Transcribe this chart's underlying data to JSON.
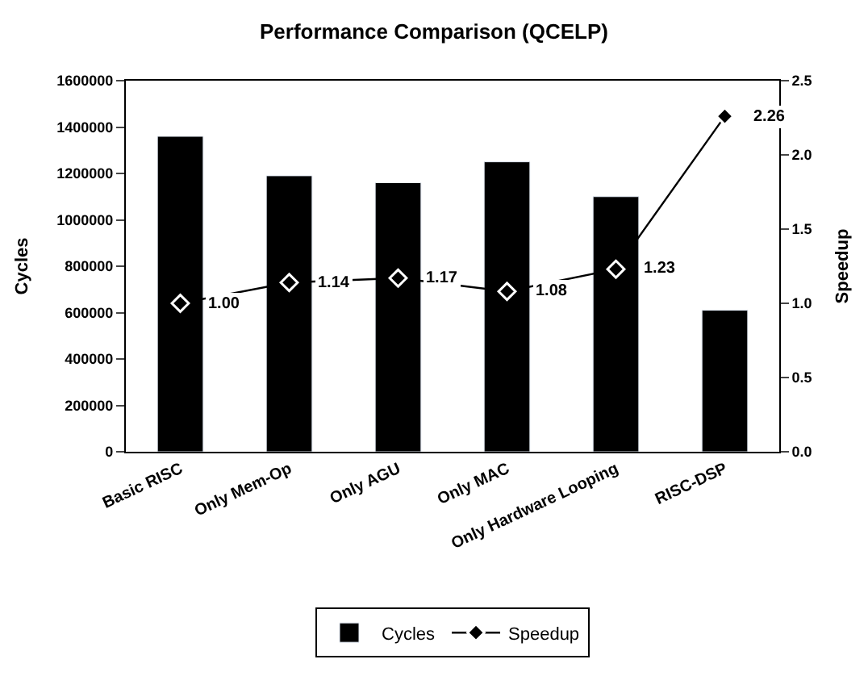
{
  "chart_data": {
    "type": "bar",
    "title": "Performance Comparison (QCELP)",
    "categories": [
      "Basic RISC",
      "Only Mem-Op",
      "Only AGU",
      "Only MAC",
      "Only Hardware Looping",
      "RISC-DSP"
    ],
    "series": [
      {
        "name": "Cycles",
        "color": "#000000",
        "values": [
          1360000,
          1190000,
          1160000,
          1250000,
          1100000,
          610000
        ]
      },
      {
        "name": "Speedup",
        "type": "line",
        "axis": "y2",
        "color": "#000000",
        "marker": "diamond",
        "values": [
          1.0,
          1.14,
          1.17,
          1.08,
          1.23,
          2.26
        ],
        "value_labels": [
          "1.00",
          "1.14",
          "1.17",
          "1.08",
          "1.23",
          "2.26"
        ]
      }
    ],
    "ylabel": "Cycles",
    "y2label": "Speedup",
    "ylim": [
      0,
      1600000
    ],
    "yticks": [
      0,
      200000,
      400000,
      600000,
      800000,
      1000000,
      1200000,
      1400000,
      1600000
    ],
    "y2lim": [
      0,
      2.5
    ],
    "y2ticks": [
      {
        "value": 0,
        "label": "0.0"
      },
      {
        "value": 0.5,
        "label": "0.5"
      },
      {
        "value": 1,
        "label": "1.0"
      },
      {
        "value": 1.5,
        "label": "1.5"
      },
      {
        "value": 2,
        "label": "2.0"
      },
      {
        "value": 2.5,
        "label": "2.5"
      }
    ],
    "legend": "bottom"
  }
}
